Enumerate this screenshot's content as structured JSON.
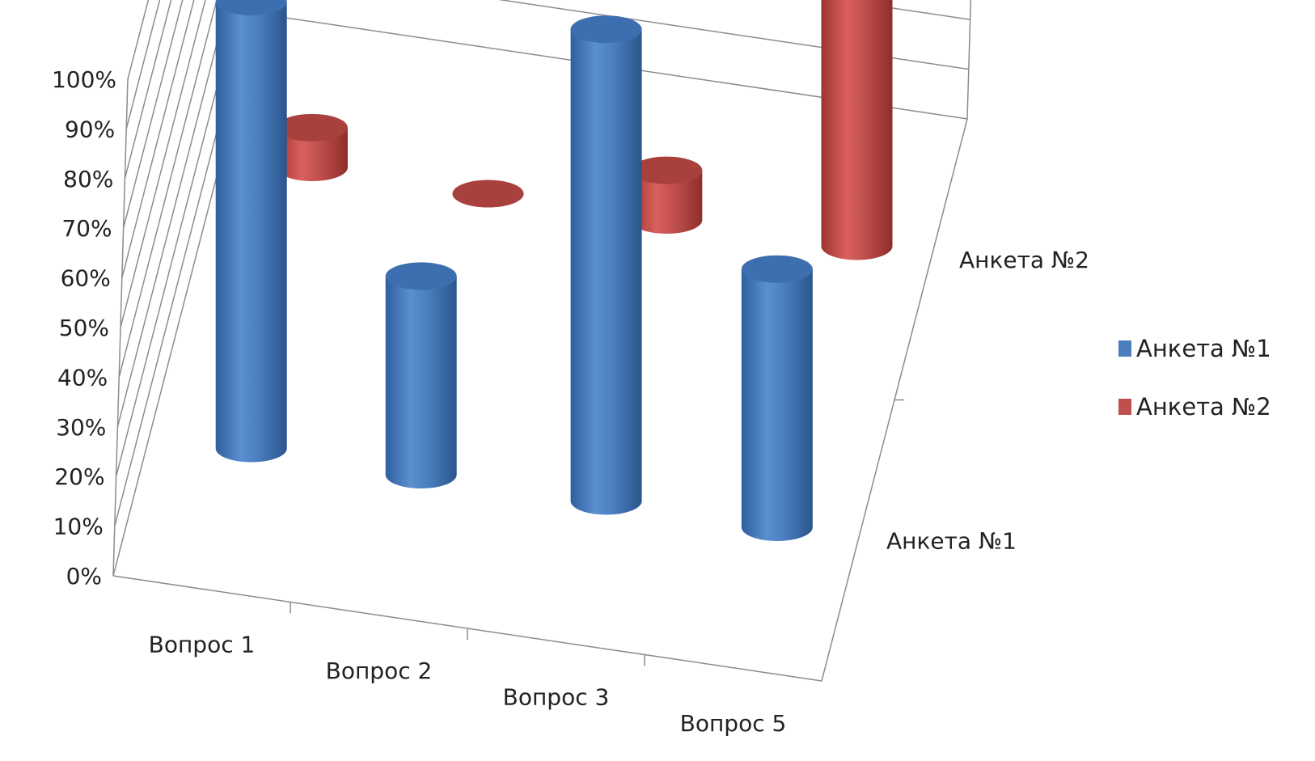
{
  "chart_data": {
    "type": "bar",
    "style": "3d-cylinder",
    "categories": [
      "Вопрос 1",
      "Вопрос 2",
      "Вопрос 3",
      "Вопрос 5"
    ],
    "series": [
      {
        "name": "Анкета №1",
        "values": [
          90,
          40,
          95,
          52
        ],
        "color": "#4a7ebf"
      },
      {
        "name": "Анкета №2",
        "values": [
          8,
          0,
          10,
          100
        ],
        "color": "#c0504d"
      }
    ],
    "depth_labels": [
      "Анкета №1",
      "Анкета №2"
    ],
    "y_ticks": [
      "0%",
      "10%",
      "20%",
      "30%",
      "40%",
      "50%",
      "60%",
      "70%",
      "80%",
      "90%",
      "100%"
    ],
    "ylim": [
      0,
      100
    ],
    "grid": true,
    "legend": {
      "position": "right",
      "items": [
        "Анкета №1",
        "Анкета №2"
      ]
    }
  }
}
